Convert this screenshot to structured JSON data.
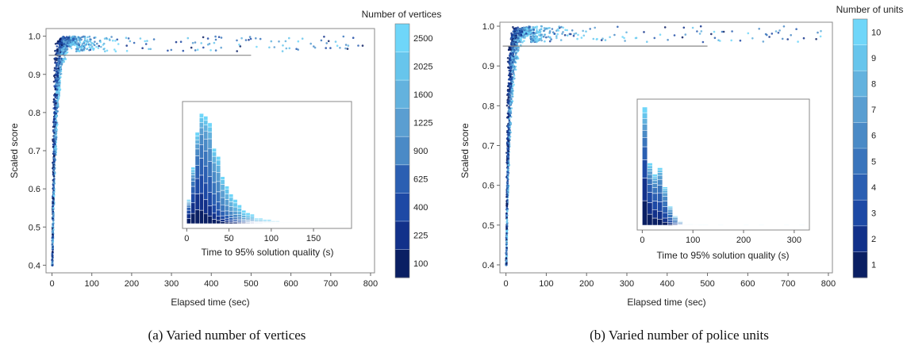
{
  "palette": [
    "#0a1f63",
    "#12318a",
    "#1d49a5",
    "#2b5fb2",
    "#3a75bc",
    "#4a8ac6",
    "#5a9ed1",
    "#63b2de",
    "#67c5ec",
    "#6fd6f9"
  ],
  "chart_data": [
    {
      "id": "a",
      "type": "scatter",
      "caption": "(a) Varied number of vertices",
      "xlabel": "Elapsed time (sec)",
      "ylabel": "Scaled score",
      "xlim": [
        -15,
        810
      ],
      "ylim": [
        0.38,
        1.02
      ],
      "xticks": [
        0,
        100,
        200,
        300,
        400,
        500,
        600,
        700,
        800
      ],
      "yticks": [
        0.4,
        0.5,
        0.6,
        0.7,
        0.8,
        0.9,
        1.0
      ],
      "ytick_labels": [
        "0.4",
        "0.5",
        "0.6",
        "0.7",
        "0.8",
        "0.9",
        "1.0"
      ],
      "threshold": {
        "y": 0.95,
        "x_end": 500
      },
      "colorbar": {
        "title": "Number of vertices",
        "labels": [
          "100",
          "225",
          "400",
          "625",
          "900",
          "1225",
          "1600",
          "2025",
          "2500"
        ]
      },
      "inset": {
        "type": "histogram",
        "stacked": true,
        "xlabel": "Time to 95% solution quality (s)",
        "xlim": [
          -5,
          195
        ],
        "xticks": [
          0,
          50,
          100,
          150
        ],
        "bin_start": 0,
        "bin_width": 5,
        "totals": [
          18,
          42,
          68,
          82,
          80,
          75,
          56,
          50,
          35,
          28,
          22,
          18,
          14,
          10,
          8,
          7,
          4,
          4,
          3,
          3,
          2,
          2,
          1,
          1,
          1,
          1,
          0,
          1,
          1,
          1,
          0,
          0,
          1,
          0,
          0,
          0,
          1,
          1
        ],
        "ymax": 85
      }
    },
    {
      "id": "b",
      "type": "scatter",
      "caption": "(b) Varied number of police units",
      "xlabel": "Elapsed time (sec)",
      "ylabel": "Scaled score",
      "xlim": [
        -15,
        810
      ],
      "ylim": [
        0.38,
        1.01
      ],
      "xticks": [
        0,
        100,
        200,
        300,
        400,
        500,
        600,
        700,
        800
      ],
      "yticks": [
        0.4,
        0.5,
        0.6,
        0.7,
        0.8,
        0.9,
        1.0
      ],
      "ytick_labels": [
        "0.4",
        "0.5",
        "0.6",
        "0.7",
        "0.8",
        "0.9",
        "1.0"
      ],
      "threshold": {
        "y": 0.95,
        "x_end": 500
      },
      "colorbar": {
        "title": "Number of units",
        "labels": [
          "1",
          "2",
          "3",
          "4",
          "5",
          "6",
          "7",
          "8",
          "9",
          "10"
        ]
      },
      "inset": {
        "type": "histogram",
        "stacked": true,
        "xlabel": "Time to 95% solution quality (s)",
        "xlim": [
          -10,
          330
        ],
        "xticks": [
          0,
          100,
          200,
          300
        ],
        "bin_start": 0,
        "bin_width": 10,
        "totals": [
          148,
          78,
          64,
          72,
          48,
          24,
          12,
          6,
          3,
          2,
          1,
          1,
          1,
          0,
          0,
          1,
          0,
          0,
          0,
          0,
          1,
          0,
          0,
          1,
          0,
          0,
          0,
          0,
          1,
          0,
          0,
          1
        ],
        "ymax": 150
      }
    }
  ]
}
